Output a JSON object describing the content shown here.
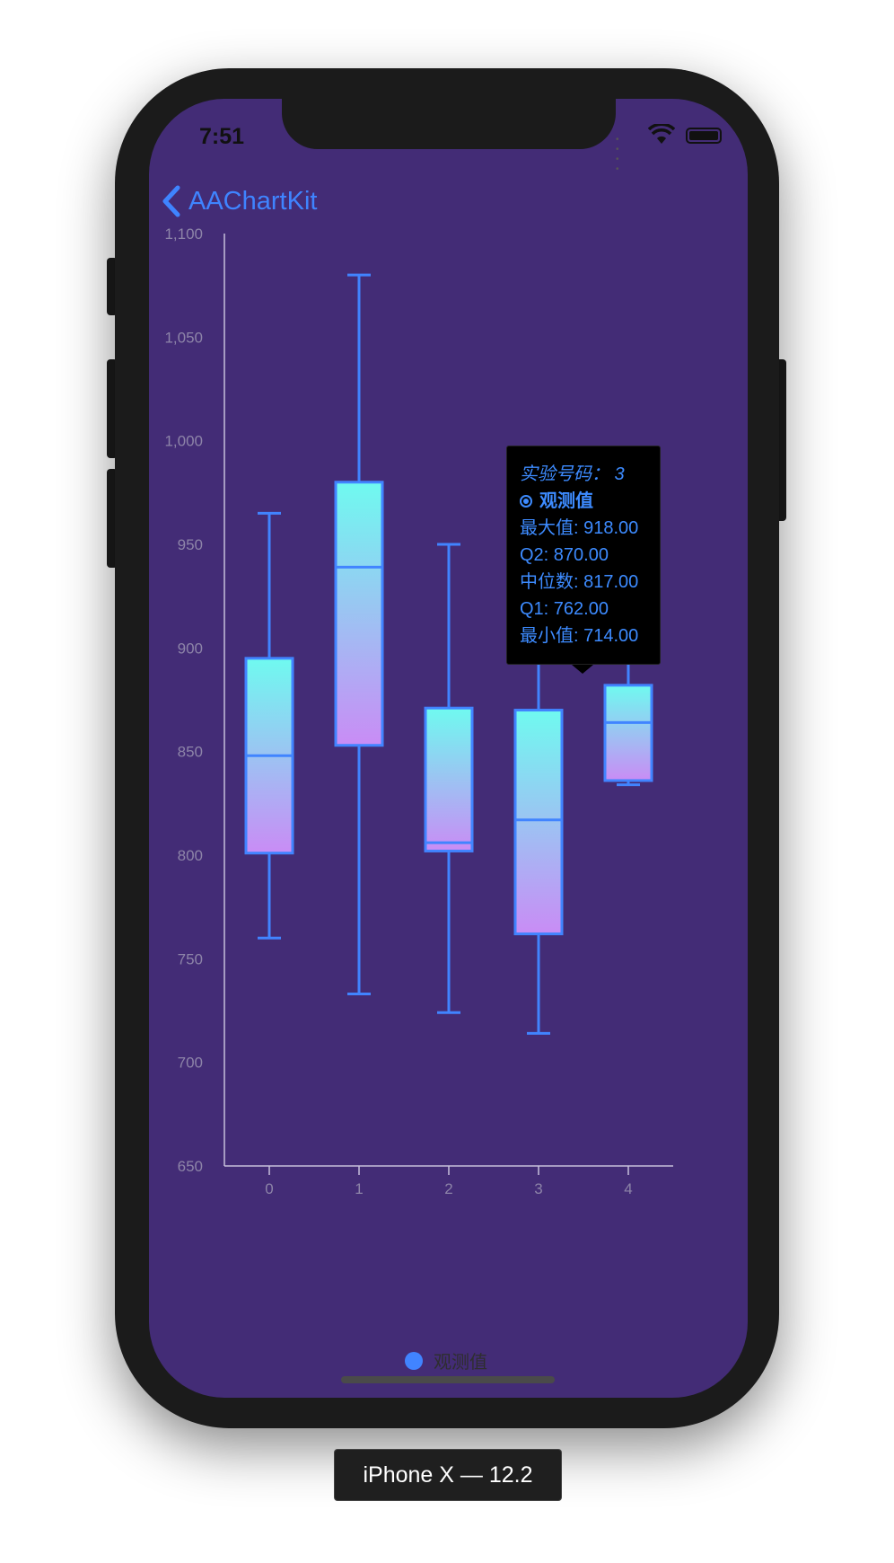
{
  "device_label": "iPhone X — 12.2",
  "status_bar": {
    "time": "7:51"
  },
  "nav": {
    "back_label": "AAChartKit"
  },
  "colors": {
    "background": "#432c76",
    "accent": "#4184ff",
    "gradient_top": "#6ffaf0",
    "gradient_bottom": "#c98cf5"
  },
  "chart_data": {
    "type": "boxplot",
    "title": "",
    "xlabel": "",
    "ylabel": "",
    "ylim": [
      650,
      1100
    ],
    "y_ticks": [
      "650",
      "700",
      "750",
      "800",
      "850",
      "900",
      "950",
      "1,000",
      "1,050",
      "1,100"
    ],
    "categories": [
      "0",
      "1",
      "2",
      "3",
      "4"
    ],
    "grid": false,
    "legend": "bottom-center",
    "series": [
      {
        "name": "观测值",
        "boxes": [
          {
            "low": 760,
            "q1": 801,
            "median": 848,
            "q3": 895,
            "high": 965
          },
          {
            "low": 733,
            "q1": 853,
            "median": 939,
            "q3": 980,
            "high": 1080
          },
          {
            "low": 724,
            "q1": 802,
            "median": 806,
            "q3": 871,
            "high": 950
          },
          {
            "low": 714,
            "q1": 762,
            "median": 817,
            "q3": 870,
            "high": 918
          },
          {
            "low": 834,
            "q1": 836,
            "median": 864,
            "q3": 882,
            "high": 910
          }
        ]
      }
    ],
    "tooltip": {
      "title": "实验号码： 3",
      "series_name": "观测值",
      "lines": [
        "最大值: 918.00",
        "Q2: 870.00",
        "中位数: 817.00",
        "Q1: 762.00",
        "最小值: 714.00"
      ]
    }
  }
}
